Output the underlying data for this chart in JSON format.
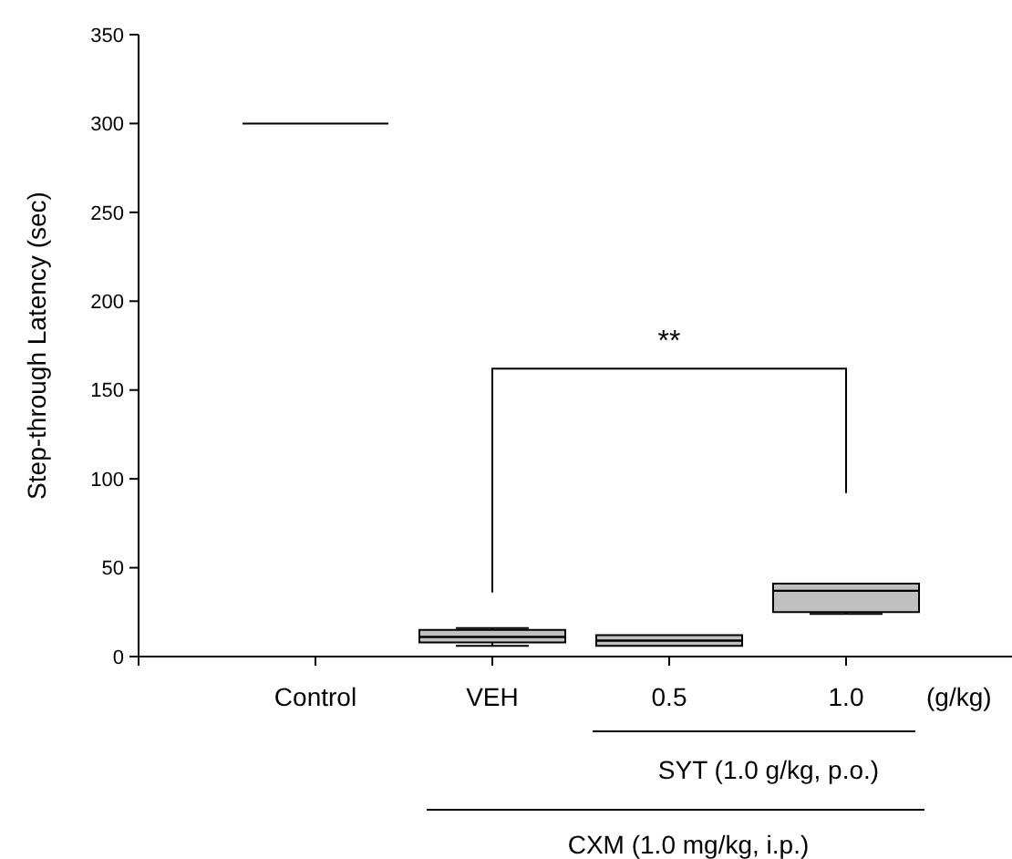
{
  "chart_data": {
    "type": "box",
    "ylabel": "Step-through Latency (sec)",
    "categories": [
      "Control",
      "VEH",
      "0.5",
      "1.0"
    ],
    "boxes": [
      {
        "low": 300,
        "q1": 300,
        "median": 300,
        "q3": 300,
        "high": 300
      },
      {
        "low": 6,
        "q1": 8,
        "median": 11,
        "q3": 15,
        "high": 16
      },
      {
        "low": 6,
        "q1": 6,
        "median": 9,
        "q3": 12,
        "high": 12
      },
      {
        "low": 24,
        "q1": 25,
        "median": 37,
        "q3": 41,
        "high": 41
      }
    ],
    "colors": [
      "#000000",
      "#c0c0c0",
      "#c0c0c0",
      "#c0c0c0"
    ],
    "ylim": [
      0,
      350
    ],
    "yticks": [
      0,
      50,
      100,
      150,
      200,
      250,
      300,
      350
    ],
    "grid": false,
    "annotations": [
      "**",
      "(g/kg)",
      "SYT (1.0 g/kg, p.o.)",
      "CXM (1.0 mg/kg, i.p.)"
    ]
  }
}
